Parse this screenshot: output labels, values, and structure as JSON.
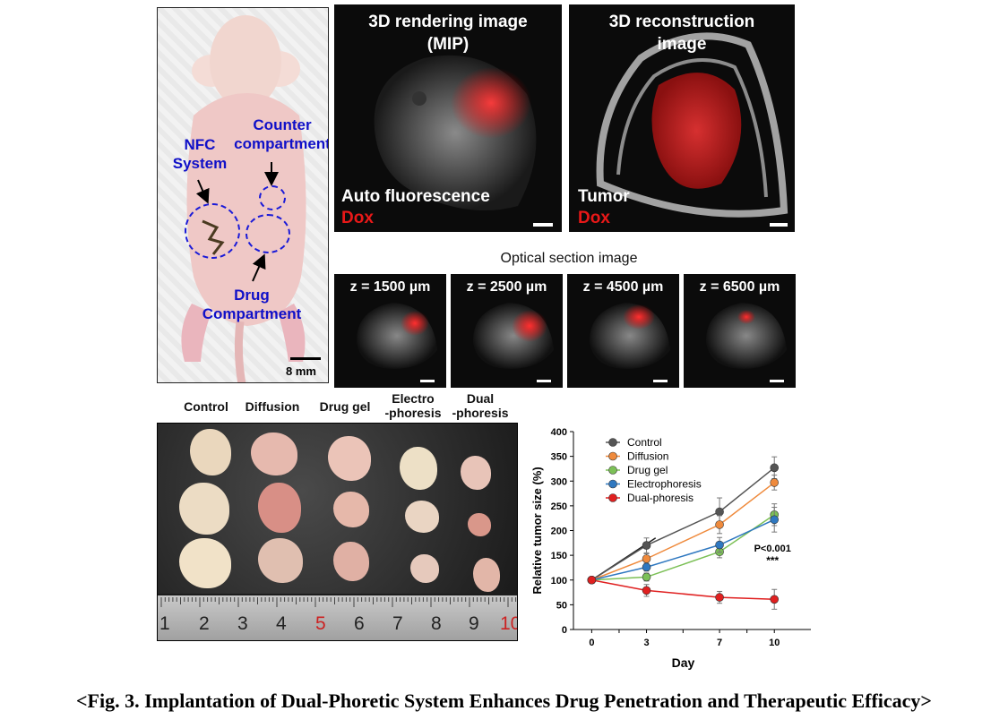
{
  "mouse_panel": {
    "nfc_label": [
      "NFC",
      "System"
    ],
    "counter_label": [
      "Counter",
      "compartment"
    ],
    "drug_label": [
      "Drug",
      "Compartment"
    ],
    "scale_text": "8 mm"
  },
  "render_panel": {
    "title": [
      "3D rendering image",
      "(MIP)"
    ],
    "label_white": "Auto fluorescence",
    "label_red": "Dox"
  },
  "recon_panel": {
    "title": [
      "3D reconstruction",
      "image"
    ],
    "label_white": "Tumor",
    "label_red": "Dox"
  },
  "optical": {
    "title": "Optical section image",
    "sections": [
      "z = 1500 µm",
      "z = 2500 µm",
      "z = 4500 µm",
      "z = 6500 µm"
    ]
  },
  "tumor_photo": {
    "column_labels": [
      [
        "Control"
      ],
      [
        "Diffusion"
      ],
      [
        "Drug gel"
      ],
      [
        "Electro",
        "-phoresis"
      ],
      [
        "Dual",
        "-phoresis"
      ]
    ],
    "ruler_numbers": [
      "1",
      "2",
      "3",
      "4",
      "5",
      "6",
      "7",
      "8",
      "9",
      "10"
    ]
  },
  "chart_data": {
    "type": "line",
    "x": [
      0,
      3,
      7,
      10
    ],
    "xlabel": "Day",
    "ylabel": "Relative tumor size (%)",
    "ylim": [
      0,
      400
    ],
    "yticks": [
      0,
      50,
      100,
      150,
      200,
      250,
      300,
      350,
      400
    ],
    "legend_placement": "top-left",
    "series": [
      {
        "name": "Control",
        "color": "#555555",
        "values": [
          100,
          170,
          238,
          327
        ],
        "err": [
          0,
          15,
          28,
          22
        ]
      },
      {
        "name": "Diffusion",
        "color": "#ef8a3c",
        "values": [
          100,
          143,
          212,
          297
        ],
        "err": [
          0,
          10,
          18,
          15
        ]
      },
      {
        "name": "Drug gel",
        "color": "#7cc057",
        "values": [
          100,
          106,
          157,
          232
        ],
        "err": [
          0,
          8,
          12,
          22
        ]
      },
      {
        "name": "Electrophoresis",
        "color": "#2f78c0",
        "values": [
          100,
          126,
          171,
          222
        ],
        "err": [
          0,
          8,
          15,
          25
        ]
      },
      {
        "name": "Dual-phoresis",
        "color": "#e02020",
        "values": [
          100,
          79,
          65,
          61
        ],
        "err": [
          0,
          12,
          12,
          20
        ]
      }
    ],
    "annotation": [
      "P<0.001",
      "***"
    ]
  },
  "caption": "<Fig. 3. Implantation of Dual-Phoretic System Enhances Drug Penetration and Therapeutic Efficacy>"
}
